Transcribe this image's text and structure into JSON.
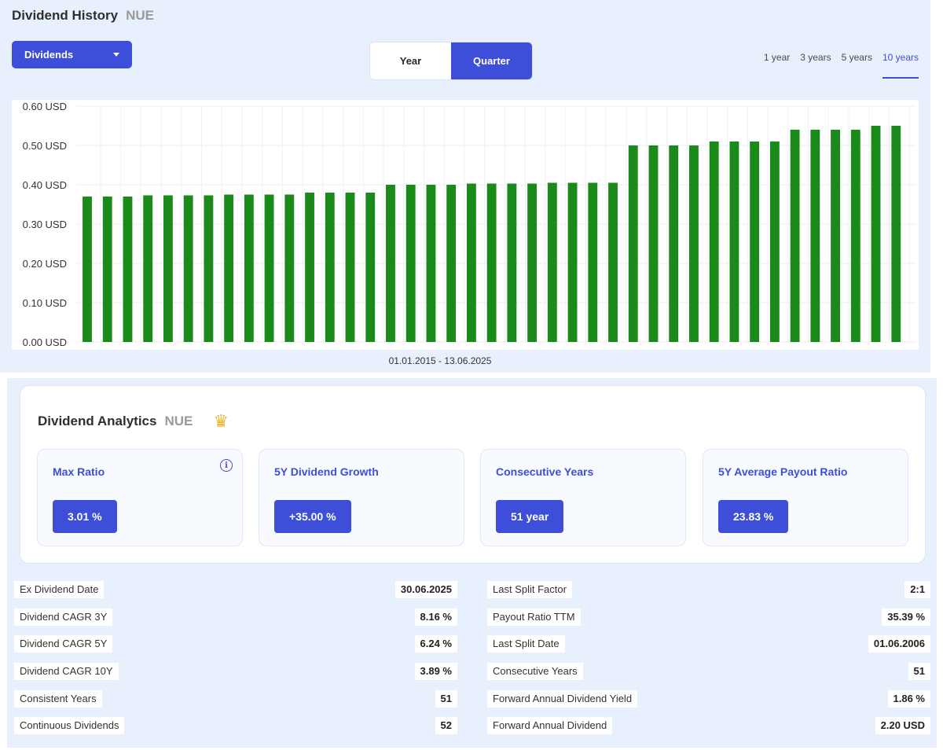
{
  "header": {
    "title": "Dividend History",
    "ticker": "NUE"
  },
  "dropdown": {
    "label": "Dividends"
  },
  "period_toggle": {
    "options": [
      "Year",
      "Quarter"
    ],
    "selected": "Quarter"
  },
  "ranges": {
    "options": [
      "1 year",
      "3 years",
      "5 years",
      "10 years"
    ],
    "selected": "10 years"
  },
  "chart_data": {
    "type": "bar",
    "bar_color": "#1a8a1a",
    "y_ticks": [
      "0.00 USD",
      "0.10 USD",
      "0.20 USD",
      "0.30 USD",
      "0.40 USD",
      "0.50 USD",
      "0.60 USD"
    ],
    "ylim": [
      0,
      0.6
    ],
    "values": [
      0.37,
      0.37,
      0.37,
      0.373,
      0.373,
      0.373,
      0.373,
      0.375,
      0.375,
      0.375,
      0.375,
      0.38,
      0.38,
      0.38,
      0.38,
      0.4,
      0.4,
      0.4,
      0.4,
      0.403,
      0.403,
      0.403,
      0.403,
      0.405,
      0.405,
      0.405,
      0.405,
      0.5,
      0.5,
      0.5,
      0.5,
      0.51,
      0.51,
      0.51,
      0.51,
      0.54,
      0.54,
      0.54,
      0.54,
      0.55,
      0.55
    ],
    "grid": true,
    "xlabel": "01.01.2015 - 13.06.2025"
  },
  "analytics": {
    "title": "Dividend Analytics",
    "ticker": "NUE",
    "cards": [
      {
        "label": "Max Ratio",
        "value": "3.01 %"
      },
      {
        "label": "5Y Dividend Growth",
        "value": "+35.00 %"
      },
      {
        "label": "Consecutive Years",
        "value": "51 year"
      },
      {
        "label": "5Y Average Payout Ratio",
        "value": "23.83 %"
      }
    ]
  },
  "stats_left": [
    {
      "key": "Ex Dividend Date",
      "value": "30.06.2025"
    },
    {
      "key": "Dividend CAGR 3Y",
      "value": "8.16 %"
    },
    {
      "key": "Dividend CAGR 5Y",
      "value": "6.24 %"
    },
    {
      "key": "Dividend CAGR 10Y",
      "value": "3.89 %"
    },
    {
      "key": "Consistent Years",
      "value": "51"
    },
    {
      "key": "Continuous Dividends",
      "value": "52"
    }
  ],
  "stats_right": [
    {
      "key": "Last Split Factor",
      "value": "2:1"
    },
    {
      "key": "Payout Ratio TTM",
      "value": "35.39 %"
    },
    {
      "key": "Last Split Date",
      "value": "01.06.2006"
    },
    {
      "key": "Consecutive Years",
      "value": "51"
    },
    {
      "key": "Forward Annual Dividend Yield",
      "value": "1.86 %"
    },
    {
      "key": "Forward Annual Dividend",
      "value": "2.20 USD"
    }
  ]
}
